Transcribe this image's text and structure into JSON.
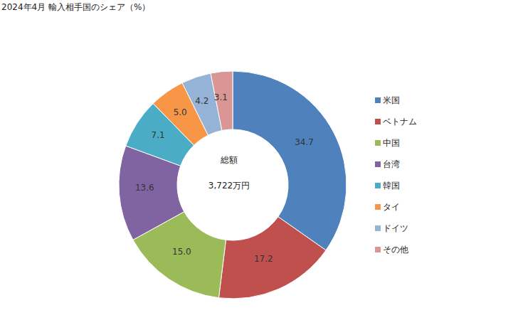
{
  "chart_data": {
    "type": "donut",
    "title": "2024年4月 輸入相手国のシェア（%）",
    "categories": [
      "米国",
      "ベトナム",
      "中国",
      "台湾",
      "韓国",
      "タイ",
      "ドイツ",
      "その他"
    ],
    "values": [
      34.7,
      17.2,
      15.0,
      13.6,
      7.1,
      5.0,
      4.2,
      3.1
    ],
    "value_labels": [
      "34.7",
      "17.2",
      "15.0",
      "13.6",
      "7.1",
      "5.0",
      "4.2",
      "3.1"
    ],
    "colors": [
      "#4f81bd",
      "#c0504d",
      "#9bbb59",
      "#8064a2",
      "#4bacc6",
      "#f79646",
      "#95b3d7",
      "#d99694"
    ],
    "data_labels": true,
    "legend": "right",
    "annotations": [
      "総額",
      "3,722万円"
    ]
  }
}
